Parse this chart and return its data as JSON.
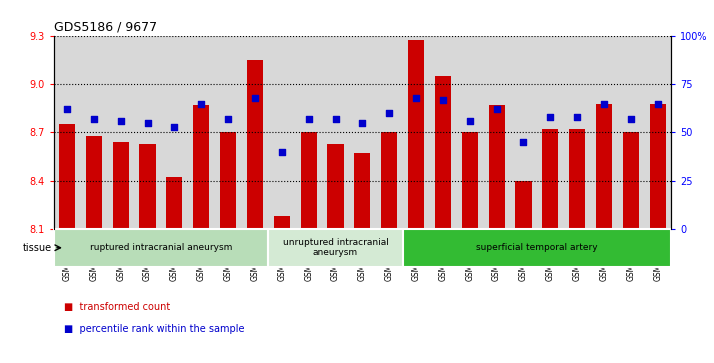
{
  "title": "GDS5186 / 9677",
  "samples": [
    "GSM1306885",
    "GSM1306886",
    "GSM1306887",
    "GSM1306888",
    "GSM1306889",
    "GSM1306890",
    "GSM1306891",
    "GSM1306892",
    "GSM1306893",
    "GSM1306894",
    "GSM1306895",
    "GSM1306896",
    "GSM1306897",
    "GSM1306898",
    "GSM1306899",
    "GSM1306900",
    "GSM1306901",
    "GSM1306902",
    "GSM1306903",
    "GSM1306904",
    "GSM1306905",
    "GSM1306906",
    "GSM1306907"
  ],
  "bar_values": [
    8.75,
    8.68,
    8.64,
    8.63,
    8.42,
    8.87,
    8.7,
    9.15,
    8.18,
    8.7,
    8.63,
    8.57,
    8.7,
    9.28,
    9.05,
    8.7,
    8.87,
    8.4,
    8.72,
    8.72,
    8.88,
    8.7,
    8.88
  ],
  "dot_values": [
    62,
    57,
    56,
    55,
    53,
    65,
    57,
    68,
    40,
    57,
    57,
    55,
    60,
    68,
    67,
    56,
    62,
    45,
    58,
    58,
    65,
    57,
    65
  ],
  "ymin": 8.1,
  "ymax": 9.3,
  "yticks": [
    8.1,
    8.4,
    8.7,
    9.0,
    9.3
  ],
  "right_yticks": [
    0,
    25,
    50,
    75,
    100
  ],
  "right_ytick_labels": [
    "0",
    "25",
    "50",
    "75",
    "100%"
  ],
  "bar_color": "#cc0000",
  "dot_color": "#0000cc",
  "bg_color": "#d8d8d8",
  "tissue_groups": [
    {
      "label": "ruptured intracranial aneurysm",
      "start": 0,
      "end": 7,
      "color": "#b8ddb8"
    },
    {
      "label": "unruptured intracranial\naneurysm",
      "start": 8,
      "end": 12,
      "color": "#d4ead4"
    },
    {
      "label": "superficial temporal artery",
      "start": 13,
      "end": 22,
      "color": "#33bb33"
    }
  ],
  "legend_bar_label": "transformed count",
  "legend_dot_label": "percentile rank within the sample",
  "tissue_label": "tissue",
  "bar_width": 0.6
}
